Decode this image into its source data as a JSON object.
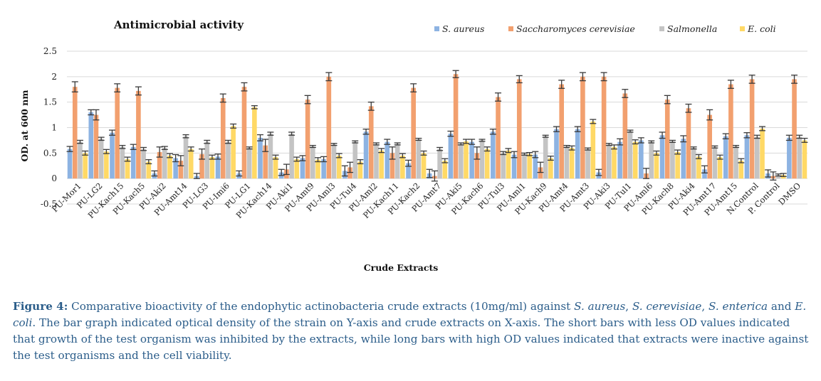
{
  "chart_data": {
    "type": "bar",
    "title": "Antimicrobial activity",
    "xlabel": "Crude Extracts",
    "ylabel": "OD. at 600 nm",
    "ylim": [
      -0.5,
      2.5
    ],
    "yticks": [
      "-0.5",
      "0",
      "0.5",
      "1",
      "1.5",
      "2",
      "2.5"
    ],
    "grid": true,
    "legend_position": "top-right",
    "categories": [
      "PU-Mor1",
      "PU-LG2",
      "PU-Kach15",
      "PU-Kach5",
      "PU-Aki2",
      "PU-Amt14",
      "PU-LG3",
      "PU-Imi6",
      "PU-LG1",
      "PU-Kach14",
      "PU-Aki1",
      "PU-Amt9",
      "PU-Aml3",
      "PU-Tul4",
      "PU-Aml2",
      "PU-Kach11",
      "PU-Kach2",
      "PU-Amt7",
      "PU-Aki5",
      "PU-Kach6",
      "PU-Tul3",
      "PU-Aml1",
      "PU-Kach9",
      "PU-Amt4",
      "PU-Amt3",
      "PU-Aki3",
      "PU-Tul1",
      "PU-Aml6",
      "PU-Kach8",
      "PU-Aki4",
      "PU-Amt17",
      "PU-Amt15",
      "N.Control",
      "P. Control",
      "DMSO"
    ],
    "series": [
      {
        "name": "S. aureus",
        "color": "#8db3e2",
        "values": [
          0.58,
          1.3,
          0.9,
          0.62,
          0.1,
          0.4,
          0.05,
          0.43,
          0.1,
          0.8,
          0.12,
          0.4,
          0.38,
          0.15,
          0.92,
          0.72,
          0.3,
          0.1,
          0.88,
          0.72,
          0.92,
          0.47,
          0.47,
          0.97,
          0.97,
          0.12,
          0.72,
          0.75,
          0.85,
          0.78,
          0.18,
          0.83,
          0.85,
          0.1,
          0.8
        ],
        "errors": [
          0.05,
          0.05,
          0.05,
          0.05,
          0.05,
          0.07,
          0.05,
          0.05,
          0.05,
          0.06,
          0.06,
          0.05,
          0.05,
          0.1,
          0.05,
          0.05,
          0.06,
          0.08,
          0.05,
          0.05,
          0.05,
          0.06,
          0.06,
          0.05,
          0.05,
          0.06,
          0.06,
          0.05,
          0.06,
          0.06,
          0.07,
          0.05,
          0.05,
          0.07,
          0.05
        ]
      },
      {
        "name": "Saccharomyces cerevisiae",
        "color": "#f2a06f",
        "values": [
          1.8,
          1.25,
          1.78,
          1.72,
          0.52,
          0.35,
          0.48,
          1.58,
          1.8,
          0.65,
          0.18,
          1.55,
          2.0,
          0.22,
          1.42,
          0.5,
          1.78,
          0.05,
          2.05,
          0.5,
          1.6,
          1.95,
          0.22,
          1.85,
          2.0,
          2.0,
          1.67,
          0.1,
          1.55,
          1.38,
          1.25,
          1.85,
          1.95,
          0.05,
          1.95
        ],
        "errors": [
          0.1,
          0.1,
          0.08,
          0.08,
          0.1,
          0.1,
          0.1,
          0.08,
          0.08,
          0.12,
          0.1,
          0.08,
          0.08,
          0.1,
          0.08,
          0.12,
          0.08,
          0.1,
          0.07,
          0.12,
          0.08,
          0.07,
          0.1,
          0.08,
          0.08,
          0.08,
          0.08,
          0.1,
          0.08,
          0.08,
          0.1,
          0.08,
          0.08,
          0.08,
          0.08
        ]
      },
      {
        "name": "Salmonella",
        "color": "#c4c4c4",
        "values": [
          0.72,
          0.78,
          0.62,
          0.58,
          0.6,
          0.83,
          0.72,
          0.72,
          0.6,
          0.88,
          0.88,
          0.63,
          0.67,
          0.72,
          0.68,
          0.68,
          0.77,
          0.58,
          0.68,
          0.75,
          0.5,
          0.48,
          0.83,
          0.63,
          0.58,
          0.67,
          0.93,
          0.72,
          0.73,
          0.6,
          0.62,
          0.63,
          0.82,
          0.07,
          0.82
        ],
        "errors": [
          0.03,
          0.03,
          0.03,
          0.03,
          0.03,
          0.03,
          0.03,
          0.03,
          0.02,
          0.03,
          0.03,
          0.02,
          0.02,
          0.02,
          0.02,
          0.02,
          0.02,
          0.03,
          0.02,
          0.02,
          0.03,
          0.02,
          0.02,
          0.02,
          0.02,
          0.02,
          0.02,
          0.02,
          0.02,
          0.02,
          0.02,
          0.02,
          0.03,
          0.02,
          0.03
        ]
      },
      {
        "name": "E. coli",
        "color": "#ffd966",
        "values": [
          0.5,
          0.53,
          0.38,
          0.33,
          0.45,
          0.58,
          0.42,
          1.03,
          1.4,
          0.42,
          0.38,
          0.37,
          0.45,
          0.33,
          0.55,
          0.45,
          0.5,
          0.35,
          0.73,
          0.58,
          0.55,
          0.48,
          0.4,
          0.6,
          1.12,
          0.62,
          0.72,
          0.5,
          0.52,
          0.43,
          0.42,
          0.35,
          0.98,
          0.07,
          0.75
        ],
        "errors": [
          0.04,
          0.04,
          0.04,
          0.04,
          0.04,
          0.04,
          0.04,
          0.04,
          0.03,
          0.04,
          0.04,
          0.04,
          0.04,
          0.04,
          0.04,
          0.04,
          0.04,
          0.04,
          0.04,
          0.04,
          0.04,
          0.03,
          0.04,
          0.04,
          0.04,
          0.04,
          0.04,
          0.04,
          0.04,
          0.04,
          0.04,
          0.04,
          0.04,
          0.03,
          0.04
        ]
      }
    ]
  },
  "caption": {
    "label": "Figure 4:",
    "part1": " Comparative bioactivity of the endophytic actinobacteria crude extracts (10mg/ml) against ",
    "sp1": "S. aureus",
    "sep1": ", ",
    "sp2": "S. cerevisiae",
    "sep2": ", ",
    "sp3": "S. enterica",
    "and": " and ",
    "sp4": "E. coli",
    "rest": ". The bar graph indicated optical density of the strain on Y-axis and crude extracts on X-axis. The short bars with less OD values indicated that growth of the test organism was inhibited by the extracts, while long bars with high OD values indicated that extracts were inactive against the test organisms and the cell viability."
  }
}
